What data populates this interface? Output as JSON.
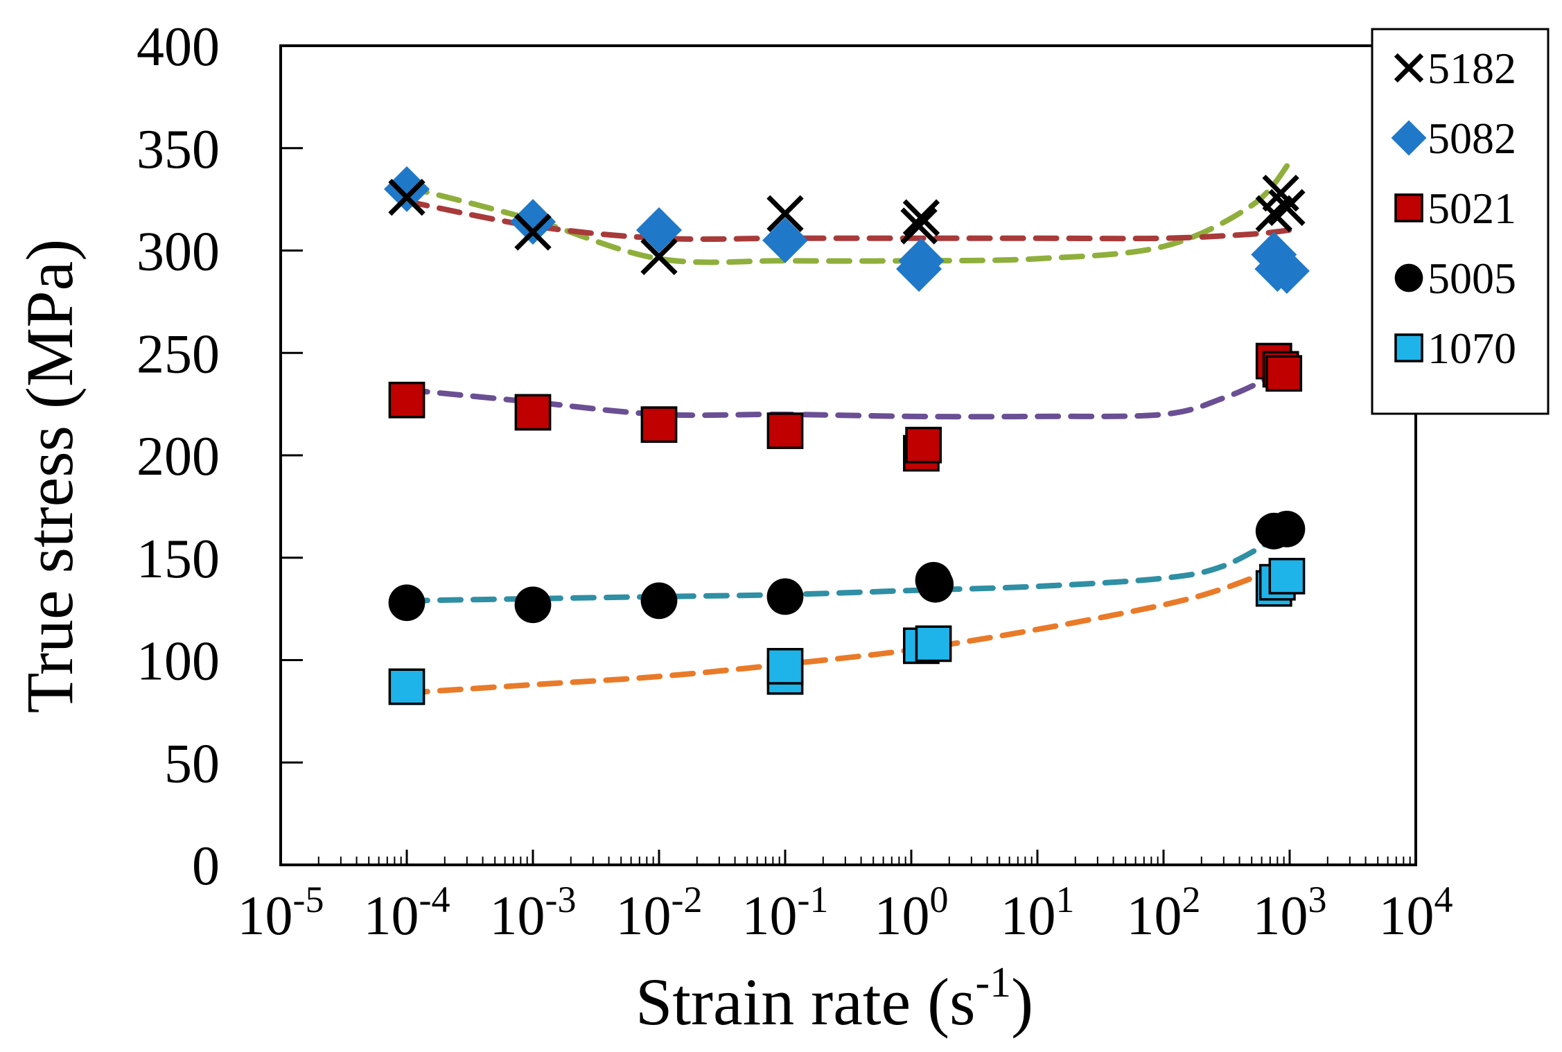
{
  "chart_data": {
    "type": "scatter",
    "title": "",
    "xlabel": {
      "main": "Strain rate (s",
      "sup": "-1",
      "close": ")"
    },
    "ylabel": "True  stress (MPa)",
    "xscale": "log",
    "xlim_exp": [
      -5,
      4
    ],
    "ylim": [
      0,
      400
    ],
    "yticks": [
      0,
      50,
      100,
      150,
      200,
      250,
      300,
      350,
      400
    ],
    "xticks": [
      {
        "base": "10",
        "exp": "-5",
        "value": -5
      },
      {
        "base": "10",
        "exp": "-4",
        "value": -4
      },
      {
        "base": "10",
        "exp": "-3",
        "value": -3
      },
      {
        "base": "10",
        "exp": "-2",
        "value": -2
      },
      {
        "base": "10",
        "exp": "-1",
        "value": -1
      },
      {
        "base": "10",
        "exp": "0",
        "value": 0
      },
      {
        "base": "10",
        "exp": "1",
        "value": 1
      },
      {
        "base": "10",
        "exp": "2",
        "value": 2
      },
      {
        "base": "10",
        "exp": "3",
        "value": 3
      },
      {
        "base": "10",
        "exp": "4",
        "value": 4
      }
    ],
    "grid": false,
    "legend_position": "top-right",
    "series": [
      {
        "name": "5182",
        "marker": "x",
        "color": "#000000",
        "points": [
          [
            0.0001,
            326
          ],
          [
            0.001,
            309
          ],
          [
            0.01,
            297
          ],
          [
            0.1,
            318
          ],
          [
            1.15,
            312
          ],
          [
            1.2,
            316
          ],
          [
            750,
            318
          ],
          [
            850,
            328
          ],
          [
            950,
            321
          ]
        ]
      },
      {
        "name": "5082",
        "marker": "diamond",
        "color": "#1f78c8",
        "points": [
          [
            0.0001,
            330
          ],
          [
            0.001,
            314
          ],
          [
            0.01,
            310
          ],
          [
            0.1,
            305
          ],
          [
            1.15,
            291
          ],
          [
            1.2,
            295
          ],
          [
            750,
            298
          ],
          [
            800,
            291
          ],
          [
            950,
            290
          ]
        ]
      },
      {
        "name": "5021",
        "marker": "square",
        "color": "#c00000",
        "points": [
          [
            0.0001,
            227
          ],
          [
            0.001,
            221
          ],
          [
            0.01,
            215
          ],
          [
            0.1,
            212
          ],
          [
            1.2,
            201
          ],
          [
            1.25,
            205
          ],
          [
            750,
            246
          ],
          [
            850,
            242
          ],
          [
            900,
            240
          ]
        ]
      },
      {
        "name": "5005",
        "marker": "circle",
        "color": "#000000",
        "points": [
          [
            0.0001,
            128
          ],
          [
            0.001,
            127
          ],
          [
            0.01,
            129
          ],
          [
            0.1,
            131
          ],
          [
            1.5,
            139
          ],
          [
            1.55,
            137
          ],
          [
            750,
            163
          ],
          [
            950,
            164
          ]
        ]
      },
      {
        "name": "1070",
        "marker": "square",
        "color": "#1eb4ea",
        "points": [
          [
            0.0001,
            87
          ],
          [
            0.1,
            92
          ],
          [
            0.1,
            97
          ],
          [
            1.2,
            107
          ],
          [
            1.5,
            108
          ],
          [
            750,
            135
          ],
          [
            800,
            138
          ],
          [
            950,
            141
          ]
        ]
      }
    ],
    "fit_curves": [
      {
        "name": "5082 fit",
        "color": "#8faf3c",
        "points": [
          [
            0.0001,
            331
          ],
          [
            0.001,
            315
          ],
          [
            0.01,
            296
          ],
          [
            0.1,
            295
          ],
          [
            1,
            295
          ],
          [
            10,
            296
          ],
          [
            100,
            302
          ],
          [
            500,
            322
          ],
          [
            1000,
            343
          ]
        ]
      },
      {
        "name": "5182 fit",
        "color": "#a83a3a",
        "points": [
          [
            0.0001,
            324
          ],
          [
            0.001,
            312
          ],
          [
            0.01,
            306
          ],
          [
            0.1,
            306
          ],
          [
            1,
            306
          ],
          [
            10,
            306
          ],
          [
            100,
            306
          ],
          [
            500,
            308
          ],
          [
            1000,
            310
          ]
        ]
      },
      {
        "name": "5021 fit",
        "color": "#6a4f94",
        "points": [
          [
            0.0001,
            232
          ],
          [
            0.001,
            226
          ],
          [
            0.01,
            220
          ],
          [
            0.1,
            220
          ],
          [
            1,
            219
          ],
          [
            10,
            219
          ],
          [
            100,
            220
          ],
          [
            300,
            228
          ],
          [
            700,
            238
          ]
        ]
      },
      {
        "name": "5005 fit",
        "color": "#2f8fa4",
        "points": [
          [
            0.0001,
            129
          ],
          [
            0.001,
            130
          ],
          [
            0.01,
            131
          ],
          [
            0.1,
            132
          ],
          [
            1,
            134
          ],
          [
            10,
            136
          ],
          [
            100,
            140
          ],
          [
            300,
            146
          ],
          [
            800,
            160
          ]
        ]
      },
      {
        "name": "1070 fit",
        "color": "#e97a28",
        "points": [
          [
            0.0001,
            84
          ],
          [
            0.001,
            88
          ],
          [
            0.01,
            92
          ],
          [
            0.1,
            98
          ],
          [
            1,
            105
          ],
          [
            10,
            115
          ],
          [
            100,
            127
          ],
          [
            300,
            135
          ],
          [
            800,
            145
          ]
        ]
      }
    ]
  }
}
